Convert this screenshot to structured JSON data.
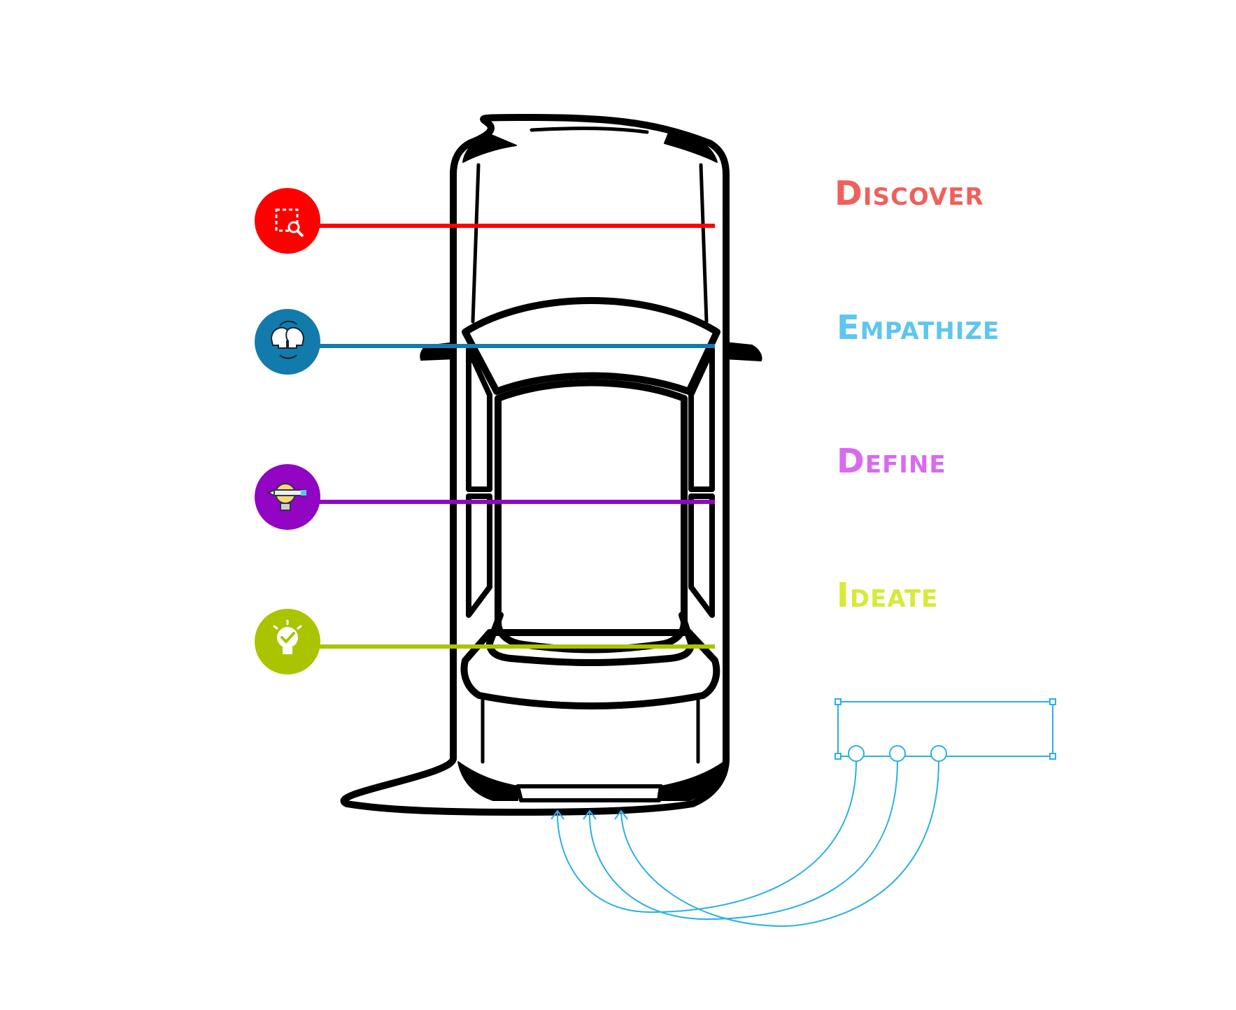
{
  "stages": [
    {
      "label": "Discover",
      "color": "#f0605b",
      "line_color": "#fe0000",
      "circle_color": "#fe0000",
      "icon": "search-selection-icon"
    },
    {
      "label": "Empathize",
      "color": "#5ec5ef",
      "line_color": "#137bac",
      "circle_color": "#137bac",
      "icon": "two-heads-exchange-icon"
    },
    {
      "label": "Define",
      "color": "#d96af0",
      "line_color": "#9205c3",
      "circle_color": "#9205c3",
      "icon": "lightbulb-pen-icon"
    },
    {
      "label": "Ideate",
      "color": "#d6ea37",
      "line_color": "#aac400",
      "circle_color": "#aac400",
      "icon": "lightbulb-check-icon"
    }
  ],
  "connector_color": "#29b0e4",
  "car_color": "#000000"
}
